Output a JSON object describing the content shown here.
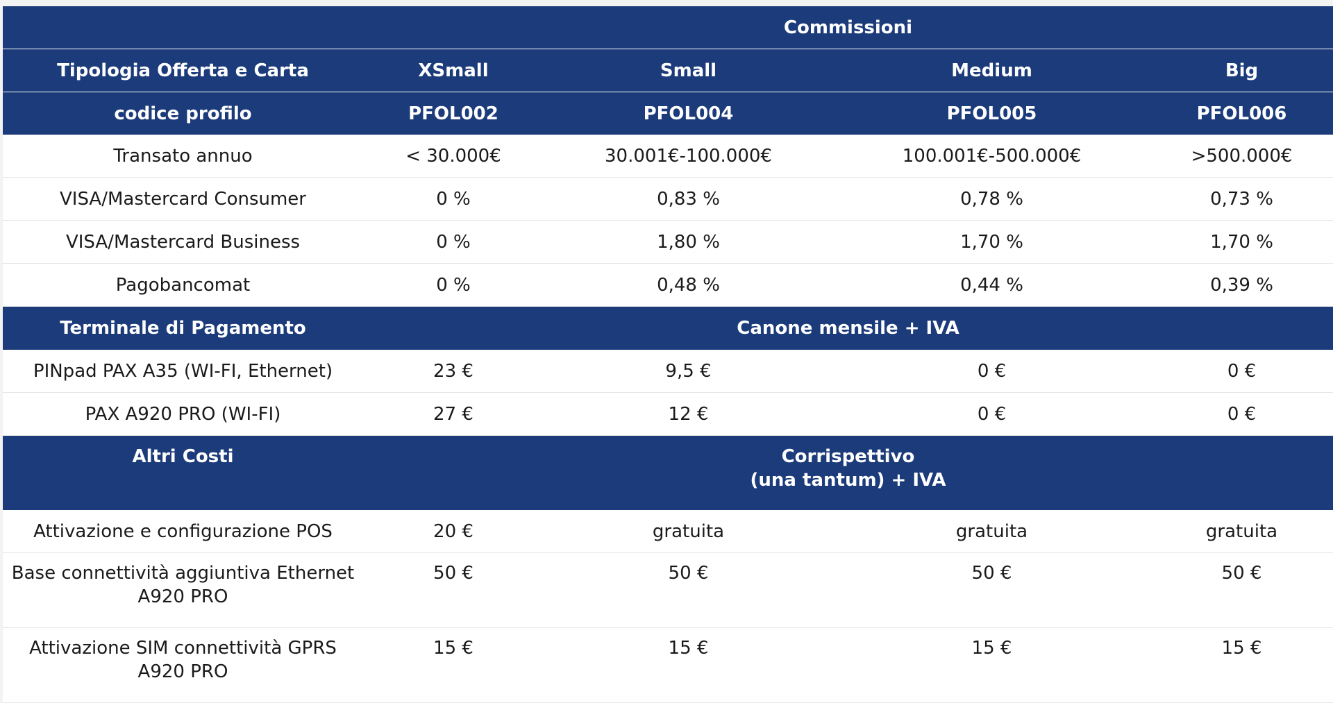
{
  "header": {
    "commissioni": "Commissioni",
    "tipologia": "Tipologia Offerta e Carta",
    "sizes": [
      "XSmall",
      "Small",
      "Medium",
      "Big"
    ],
    "codice_label": "codice profilo",
    "codes": [
      "PFOL002",
      "PFOL004",
      "PFOL005",
      "PFOL006"
    ]
  },
  "commissioni_rows": [
    {
      "label": "Transato annuo",
      "values": [
        "< 30.000€",
        "30.001€-100.000€",
        "100.001€-500.000€",
        ">500.000€"
      ]
    },
    {
      "label": "VISA/Mastercard Consumer",
      "values": [
        "0 %",
        "0,83 %",
        "0,78 %",
        "0,73 %"
      ]
    },
    {
      "label": "VISA/Mastercard Business",
      "values": [
        "0 %",
        "1,80 %",
        "1,70 %",
        "1,70 %"
      ]
    },
    {
      "label": "Pagobancomat",
      "values": [
        "0 %",
        "0,48 %",
        "0,44 %",
        "0,39 %"
      ]
    }
  ],
  "terminale": {
    "title": "Terminale di Pagamento",
    "subtitle": "Canone mensile + IVA",
    "rows": [
      {
        "label": "PINpad PAX A35 (WI-FI, Ethernet)",
        "values": [
          "23 €",
          "9,5 €",
          "0 €",
          "0 €"
        ]
      },
      {
        "label": "PAX A920 PRO (WI-FI)",
        "values": [
          "27 €",
          "12 €",
          "0 €",
          "0 €"
        ]
      }
    ]
  },
  "altri": {
    "title": "Altri Costi",
    "subtitle_line1": "Corrispettivo",
    "subtitle_line2": "(una tantum) + IVA",
    "rows": [
      {
        "label_line1": "Attivazione e configurazione POS",
        "label_line2": "",
        "values": [
          "20 €",
          "gratuita",
          "gratuita",
          "gratuita"
        ]
      },
      {
        "label_line1": "Base connettività aggiuntiva Ethernet",
        "label_line2": "A920 PRO",
        "values": [
          "50 €",
          "50 €",
          "50 €",
          "50 €"
        ]
      },
      {
        "label_line1": "Attivazione SIM connettività GPRS",
        "label_line2": "A920 PRO",
        "values": [
          "15 €",
          "15 €",
          "15 €",
          "15 €"
        ]
      }
    ]
  }
}
